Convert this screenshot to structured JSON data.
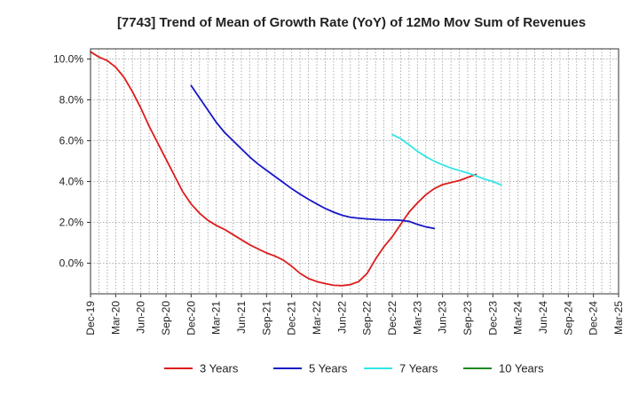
{
  "chart_data": {
    "type": "line",
    "title": "[7743]  Trend of Mean of Growth Rate (YoY) of 12Mo Mov Sum of Revenues",
    "xlabel": "",
    "ylabel": "",
    "x_tick_labels": [
      "Dec-19",
      "Mar-20",
      "Jun-20",
      "Sep-20",
      "Dec-20",
      "Mar-21",
      "Jun-21",
      "Sep-21",
      "Dec-21",
      "Mar-22",
      "Jun-22",
      "Sep-22",
      "Dec-22",
      "Mar-23",
      "Jun-23",
      "Sep-23",
      "Dec-23",
      "Mar-24",
      "Jun-24",
      "Sep-24",
      "Dec-24",
      "Mar-25"
    ],
    "y_ticks": [
      0.0,
      2.0,
      4.0,
      6.0,
      8.0,
      10.0
    ],
    "y_tick_labels": [
      "0.0%",
      "2.0%",
      "4.0%",
      "6.0%",
      "8.0%",
      "10.0%"
    ],
    "ylim": [
      -1.5,
      10.5
    ],
    "grid": true,
    "legend_position": "bottom",
    "series": [
      {
        "name": "3 Years",
        "color": "#dd1c1c",
        "start_index": 0,
        "values": [
          10.35,
          10.1,
          9.92,
          9.6,
          9.1,
          8.4,
          7.6,
          6.7,
          5.9,
          5.1,
          4.3,
          3.5,
          2.9,
          2.45,
          2.1,
          1.85,
          1.65,
          1.4,
          1.15,
          0.9,
          0.7,
          0.5,
          0.35,
          0.15,
          -0.15,
          -0.5,
          -0.75,
          -0.9,
          -1.0,
          -1.08,
          -1.1,
          -1.05,
          -0.9,
          -0.5,
          0.2,
          0.8,
          1.3,
          1.9,
          2.5,
          2.95,
          3.35,
          3.65,
          3.85,
          3.95,
          4.05,
          4.2,
          4.35
        ]
      },
      {
        "name": "5 Years",
        "color": "#1717c8",
        "start_index": 12,
        "values": [
          8.7,
          8.1,
          7.5,
          6.9,
          6.4,
          6.0,
          5.6,
          5.2,
          4.85,
          4.55,
          4.25,
          3.95,
          3.65,
          3.38,
          3.13,
          2.9,
          2.68,
          2.5,
          2.35,
          2.25,
          2.2,
          2.17,
          2.14,
          2.12,
          2.12,
          2.1,
          2.05,
          1.9,
          1.78,
          1.7
        ]
      },
      {
        "name": "7 Years",
        "color": "#33e6e6",
        "start_index": 36,
        "values": [
          6.3,
          6.1,
          5.8,
          5.48,
          5.22,
          5.0,
          4.82,
          4.66,
          4.54,
          4.42,
          4.28,
          4.12,
          4.0,
          3.83
        ]
      },
      {
        "name": "10 Years",
        "color": "#1f8a1f",
        "start_index": 0,
        "values": []
      }
    ]
  }
}
